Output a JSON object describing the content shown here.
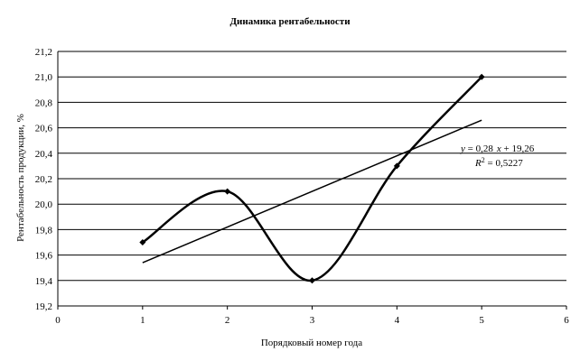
{
  "chart_data": {
    "type": "scatter",
    "title": "Динамика рентабельности",
    "xlabel": "Порядковый номер года",
    "ylabel": "Рентабельность продукции, %",
    "xlim": [
      0,
      6
    ],
    "ylim": [
      19.2,
      21.2
    ],
    "x_ticks": [
      "0",
      "1",
      "2",
      "3",
      "4",
      "5",
      "6"
    ],
    "y_ticks": [
      "19,2",
      "19,4",
      "19,6",
      "19,8",
      "20,0",
      "20,2",
      "20,4",
      "20,6",
      "20,8",
      "21,0",
      "21,2"
    ],
    "grid": "horizontal",
    "series": [
      {
        "x": [
          1,
          2,
          3,
          4,
          5
        ],
        "y": [
          19.7,
          20.1,
          19.4,
          20.3,
          21.0
        ],
        "line": "smooth",
        "marker": "diamond"
      }
    ],
    "trendline": {
      "kind": "linear",
      "slope": 0.28,
      "intercept": 19.26,
      "x_range": [
        1,
        5
      ],
      "equation_parts": [
        "y",
        " = 0,28",
        "x",
        " + 19,26"
      ],
      "r2_parts": [
        "R",
        "2",
        " = 0,5227"
      ]
    }
  }
}
